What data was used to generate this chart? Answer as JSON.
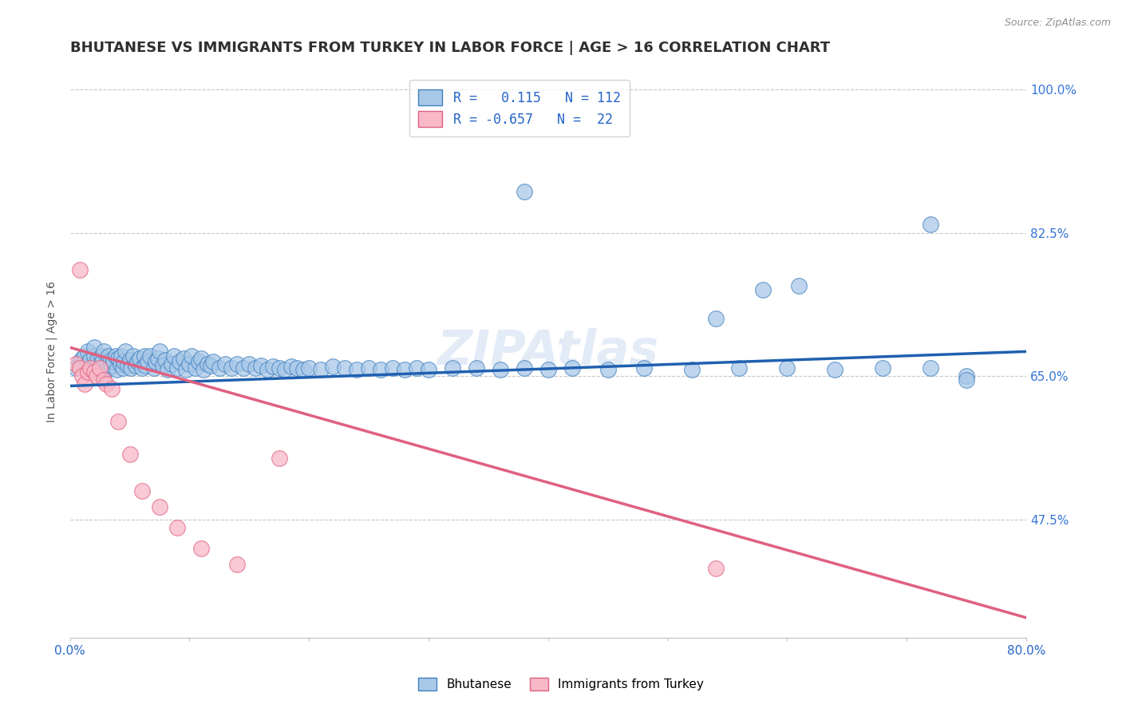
{
  "title": "BHUTANESE VS IMMIGRANTS FROM TURKEY IN LABOR FORCE | AGE > 16 CORRELATION CHART",
  "source": "Source: ZipAtlas.com",
  "ylabel": "In Labor Force | Age > 16",
  "xmin": 0.0,
  "xmax": 0.8,
  "ymin": 0.33,
  "ymax": 1.03,
  "yticks": [
    0.475,
    0.65,
    0.825,
    1.0
  ],
  "ytick_labels": [
    "47.5%",
    "65.0%",
    "82.5%",
    "100.0%"
  ],
  "xticks": [
    0.0,
    0.1,
    0.2,
    0.3,
    0.4,
    0.5,
    0.6,
    0.7,
    0.8
  ],
  "blue_R": 0.115,
  "blue_N": 112,
  "pink_R": -0.657,
  "pink_N": 22,
  "blue_color": "#a8c8e8",
  "blue_edge_color": "#4080c0",
  "pink_color": "#f8b8c8",
  "pink_edge_color": "#e06080",
  "blue_line_color": "#2060b0",
  "pink_line_color": "#e06080",
  "legend_label_blue": "Bhutanese",
  "legend_label_pink": "Immigrants from Turkey",
  "blue_scatter_x": [
    0.005,
    0.008,
    0.01,
    0.012,
    0.015,
    0.015,
    0.017,
    0.018,
    0.02,
    0.02,
    0.022,
    0.023,
    0.025,
    0.026,
    0.027,
    0.028,
    0.03,
    0.031,
    0.032,
    0.033,
    0.034,
    0.035,
    0.036,
    0.038,
    0.039,
    0.04,
    0.042,
    0.043,
    0.044,
    0.045,
    0.046,
    0.048,
    0.05,
    0.051,
    0.053,
    0.055,
    0.056,
    0.058,
    0.06,
    0.062,
    0.063,
    0.065,
    0.067,
    0.07,
    0.072,
    0.074,
    0.075,
    0.078,
    0.08,
    0.082,
    0.085,
    0.087,
    0.09,
    0.092,
    0.095,
    0.097,
    0.1,
    0.102,
    0.105,
    0.108,
    0.11,
    0.112,
    0.115,
    0.118,
    0.12,
    0.125,
    0.13,
    0.135,
    0.14,
    0.145,
    0.15,
    0.155,
    0.16,
    0.165,
    0.17,
    0.175,
    0.18,
    0.185,
    0.19,
    0.195,
    0.2,
    0.21,
    0.22,
    0.23,
    0.24,
    0.25,
    0.26,
    0.27,
    0.28,
    0.29,
    0.3,
    0.32,
    0.34,
    0.36,
    0.38,
    0.4,
    0.42,
    0.45,
    0.48,
    0.52,
    0.56,
    0.6,
    0.64,
    0.68,
    0.72,
    0.75,
    0.38,
    0.72,
    0.75,
    0.54,
    0.58,
    0.61
  ],
  "blue_scatter_y": [
    0.66,
    0.668,
    0.672,
    0.675,
    0.665,
    0.68,
    0.67,
    0.658,
    0.675,
    0.685,
    0.663,
    0.67,
    0.66,
    0.675,
    0.668,
    0.68,
    0.658,
    0.665,
    0.675,
    0.66,
    0.67,
    0.663,
    0.668,
    0.675,
    0.658,
    0.672,
    0.665,
    0.675,
    0.66,
    0.668,
    0.68,
    0.663,
    0.67,
    0.66,
    0.675,
    0.663,
    0.668,
    0.672,
    0.66,
    0.675,
    0.663,
    0.668,
    0.675,
    0.66,
    0.668,
    0.672,
    0.68,
    0.663,
    0.67,
    0.658,
    0.665,
    0.675,
    0.66,
    0.668,
    0.672,
    0.658,
    0.665,
    0.675,
    0.66,
    0.668,
    0.672,
    0.658,
    0.665,
    0.663,
    0.668,
    0.66,
    0.665,
    0.66,
    0.665,
    0.66,
    0.665,
    0.66,
    0.663,
    0.658,
    0.662,
    0.66,
    0.658,
    0.662,
    0.66,
    0.658,
    0.66,
    0.658,
    0.662,
    0.66,
    0.658,
    0.66,
    0.658,
    0.66,
    0.658,
    0.66,
    0.658,
    0.66,
    0.66,
    0.658,
    0.66,
    0.658,
    0.66,
    0.658,
    0.66,
    0.658,
    0.66,
    0.66,
    0.658,
    0.66,
    0.66,
    0.65,
    0.875,
    0.835,
    0.645,
    0.72,
    0.755,
    0.76
  ],
  "pink_scatter_x": [
    0.005,
    0.008,
    0.01,
    0.012,
    0.015,
    0.017,
    0.02,
    0.022,
    0.025,
    0.028,
    0.03,
    0.035,
    0.04,
    0.05,
    0.06,
    0.075,
    0.09,
    0.11,
    0.14,
    0.175,
    0.54,
    0.008
  ],
  "pink_scatter_y": [
    0.665,
    0.66,
    0.65,
    0.64,
    0.655,
    0.66,
    0.655,
    0.65,
    0.66,
    0.645,
    0.64,
    0.635,
    0.595,
    0.555,
    0.51,
    0.49,
    0.465,
    0.44,
    0.42,
    0.55,
    0.415,
    0.78
  ],
  "blue_trend_x": [
    0.0,
    0.8
  ],
  "blue_trend_y": [
    0.638,
    0.68
  ],
  "pink_trend_x": [
    0.0,
    0.8
  ],
  "pink_trend_y": [
    0.685,
    0.355
  ],
  "watermark": "ZIPAtlas",
  "title_color": "#303030",
  "axis_color": "#2565c8",
  "right_axis_color": "#3575d8",
  "grid_color": "#c8c8c8",
  "title_fontsize": 13,
  "axis_label_fontsize": 10,
  "tick_fontsize": 11,
  "source_text": "Source: ZipAtlas.com"
}
